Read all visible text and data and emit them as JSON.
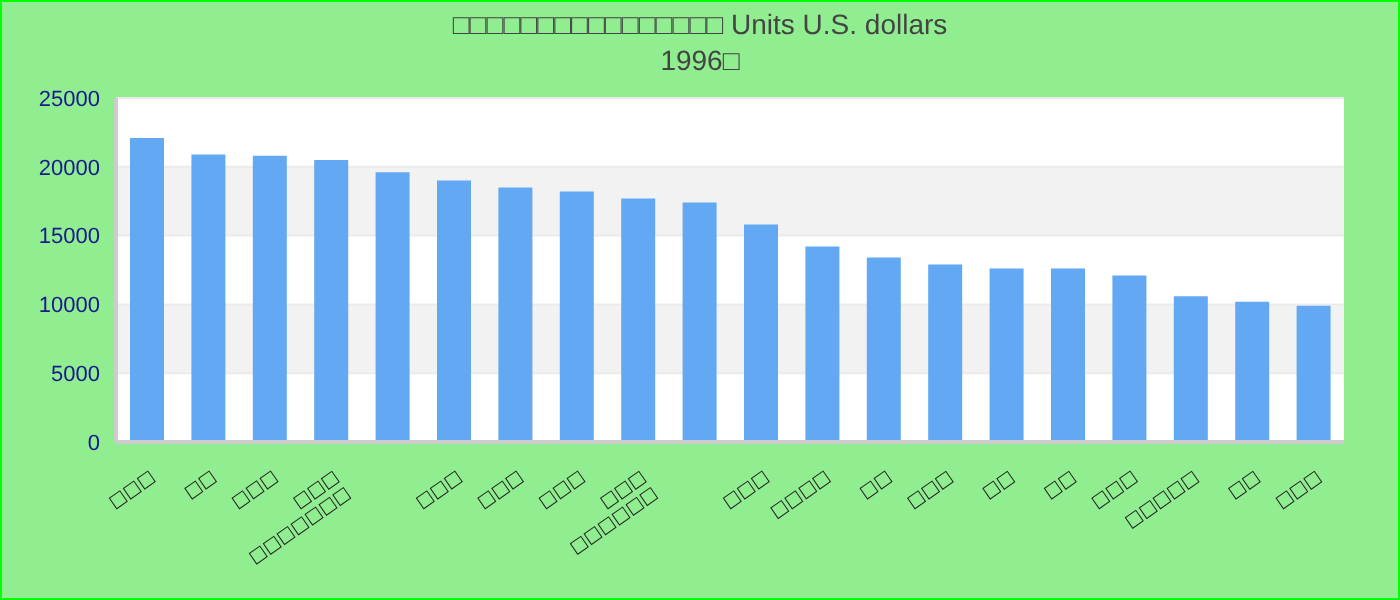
{
  "chart_data": {
    "type": "bar",
    "title": "□□□□□□□□□□□□□□□□ Units U.S. dollars",
    "subtitle": "1996□",
    "categories": [
      "□□□",
      "□□",
      "□□□",
      "□□□ □□□□□□□",
      null,
      "□□□",
      "□□□",
      "□□□",
      "□□□ □□□□□□",
      null,
      "□□□",
      "□□□□",
      "□□",
      "□□□",
      "□□",
      "□□",
      "□□□",
      "□□□□□",
      "□□",
      "□□□"
    ],
    "values": [
      22100,
      20900,
      20800,
      20500,
      19600,
      19000,
      18500,
      18200,
      17700,
      17400,
      15800,
      14200,
      13400,
      12900,
      12600,
      12600,
      12100,
      10600,
      10200,
      9900
    ],
    "color": "#63a8f2",
    "ylim": [
      0,
      25000
    ],
    "yticks": [
      0,
      5000,
      10000,
      15000,
      20000,
      25000
    ],
    "grid": "y"
  }
}
